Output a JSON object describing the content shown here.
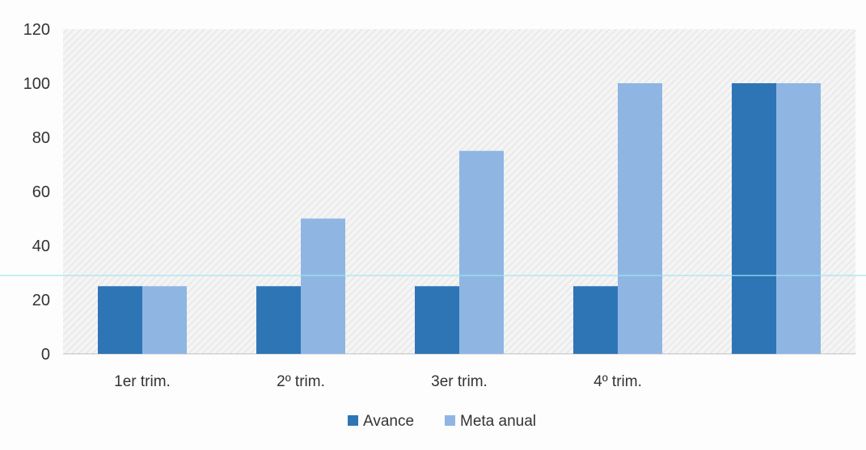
{
  "chart_data": {
    "type": "bar",
    "title": "",
    "xlabel": "",
    "ylabel": "",
    "categories": [
      "1er trim.",
      "2º trim.",
      "3er trim.",
      "4º trim.",
      ""
    ],
    "series": [
      {
        "name": "Avance",
        "values": [
          25,
          25,
          25,
          25,
          100
        ],
        "color": "#2e75b6"
      },
      {
        "name": "Meta anual",
        "values": [
          25,
          50,
          75,
          100,
          100
        ],
        "color": "#8fb6e3"
      }
    ],
    "ylim": [
      0,
      120
    ],
    "yticks": [
      0,
      20,
      40,
      60,
      80,
      100,
      120
    ],
    "grid": false,
    "legend": "bottom-center"
  }
}
